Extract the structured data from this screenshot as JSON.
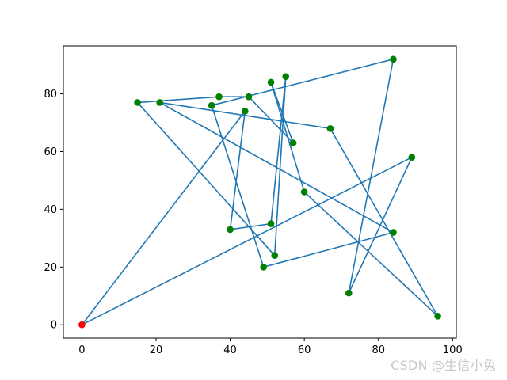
{
  "chart_data": {
    "type": "scatter",
    "title": "",
    "xlabel": "",
    "ylabel": "",
    "xlim": [
      -5,
      101
    ],
    "ylim": [
      -4.6,
      96.6
    ],
    "x_ticks": [
      0,
      20,
      40,
      60,
      80,
      100
    ],
    "y_ticks": [
      0,
      20,
      40,
      60,
      80
    ],
    "grid": false,
    "line_color": "#1f77b4",
    "point_color": "#008000",
    "start_point_color": "#ff0000",
    "start": {
      "x": 0,
      "y": 0
    },
    "path": [
      {
        "x": 0,
        "y": 0
      },
      {
        "x": 89,
        "y": 58
      },
      {
        "x": 72,
        "y": 11
      },
      {
        "x": 84,
        "y": 92
      },
      {
        "x": 35,
        "y": 76
      },
      {
        "x": 49,
        "y": 20
      },
      {
        "x": 84,
        "y": 32
      },
      {
        "x": 21,
        "y": 77
      },
      {
        "x": 67,
        "y": 68
      },
      {
        "x": 96,
        "y": 3
      },
      {
        "x": 60,
        "y": 46
      },
      {
        "x": 51,
        "y": 84
      },
      {
        "x": 57,
        "y": 63
      },
      {
        "x": 45,
        "y": 79
      },
      {
        "x": 37,
        "y": 79
      },
      {
        "x": 15,
        "y": 77
      },
      {
        "x": 52,
        "y": 24
      },
      {
        "x": 55,
        "y": 86
      },
      {
        "x": 51,
        "y": 35
      },
      {
        "x": 40,
        "y": 33
      },
      {
        "x": 44,
        "y": 74
      },
      {
        "x": 0,
        "y": 0
      }
    ]
  },
  "watermark": "CSDN @生信小兔"
}
